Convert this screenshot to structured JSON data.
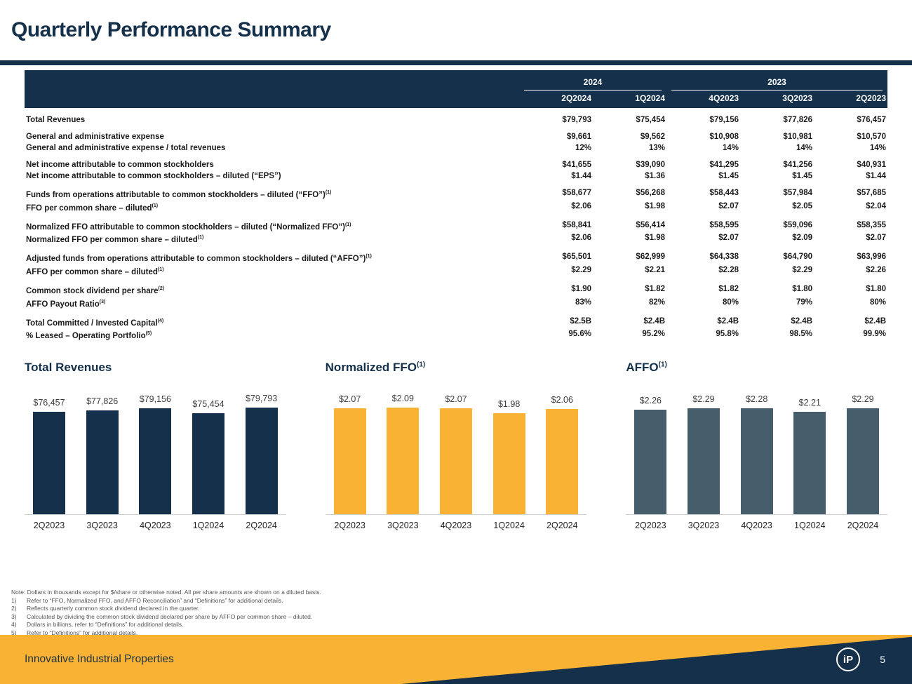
{
  "title": "Quarterly Performance Summary",
  "colors": {
    "navy": "#14304A",
    "gold": "#F9B234",
    "slate": "#465E6B"
  },
  "table": {
    "year_groups": [
      {
        "label": "2024"
      },
      {
        "label": "2023"
      }
    ],
    "columns": [
      "2Q2024",
      "1Q2024",
      "4Q2023",
      "3Q2023",
      "2Q2023"
    ],
    "groups": [
      {
        "rows": [
          {
            "label": "Total Revenues",
            "sup": "",
            "values": [
              "$79,793",
              "$75,454",
              "$79,156",
              "$77,826",
              "$76,457"
            ]
          }
        ]
      },
      {
        "rows": [
          {
            "label": "General and administrative expense",
            "sup": "",
            "values": [
              "$9,661",
              "$9,562",
              "$10,908",
              "$10,981",
              "$10,570"
            ]
          },
          {
            "label": "General and administrative expense / total revenues",
            "sup": "",
            "values": [
              "12%",
              "13%",
              "14%",
              "14%",
              "14%"
            ]
          }
        ]
      },
      {
        "rows": [
          {
            "label": "Net income attributable to common stockholders",
            "sup": "",
            "values": [
              "$41,655",
              "$39,090",
              "$41,295",
              "$41,256",
              "$40,931"
            ]
          },
          {
            "label": "Net income attributable to common stockholders – diluted (“EPS”)",
            "sup": "",
            "values": [
              "$1.44",
              "$1.36",
              "$1.45",
              "$1.45",
              "$1.44"
            ]
          }
        ]
      },
      {
        "rows": [
          {
            "label": "Funds from operations attributable to common stockholders – diluted (“FFO”)",
            "sup": "(1)",
            "values": [
              "$58,677",
              "$56,268",
              "$58,443",
              "$57,984",
              "$57,685"
            ]
          },
          {
            "label": "FFO per common share – diluted",
            "sup": "(1)",
            "values": [
              "$2.06",
              "$1.98",
              "$2.07",
              "$2.05",
              "$2.04"
            ]
          }
        ]
      },
      {
        "rows": [
          {
            "label": "Normalized FFO attributable to common stockholders – diluted (“Normalized FFO”)",
            "sup": "(1)",
            "values": [
              "$58,841",
              "$56,414",
              "$58,595",
              "$59,096",
              "$58,355"
            ]
          },
          {
            "label": "Normalized FFO per common share – diluted",
            "sup": "(1)",
            "values": [
              "$2.06",
              "$1.98",
              "$2.07",
              "$2.09",
              "$2.07"
            ]
          }
        ]
      },
      {
        "rows": [
          {
            "label": "Adjusted funds from operations attributable to common stockholders – diluted (“AFFO”)",
            "sup": "(1)",
            "values": [
              "$65,501",
              "$62,999",
              "$64,338",
              "$64,790",
              "$63,996"
            ]
          },
          {
            "label": "AFFO per common share – diluted",
            "sup": "(1)",
            "values": [
              "$2.29",
              "$2.21",
              "$2.28",
              "$2.29",
              "$2.26"
            ]
          }
        ]
      },
      {
        "rows": [
          {
            "label": "Common stock dividend per share",
            "sup": "(2)",
            "values": [
              "$1.90",
              "$1.82",
              "$1.82",
              "$1.80",
              "$1.80"
            ]
          },
          {
            "label": "AFFO Payout Ratio",
            "sup": "(3)",
            "values": [
              "83%",
              "82%",
              "80%",
              "79%",
              "80%"
            ]
          }
        ]
      },
      {
        "rows": [
          {
            "label": "Total Committed / Invested Capital",
            "sup": "(4)",
            "values": [
              "$2.5B",
              "$2.4B",
              "$2.4B",
              "$2.4B",
              "$2.4B"
            ]
          },
          {
            "label": "% Leased – Operating Portfolio",
            "sup": "(5)",
            "values": [
              "95.6%",
              "95.2%",
              "95.8%",
              "98.5%",
              "99.9%"
            ]
          }
        ]
      }
    ]
  },
  "chart_data": [
    {
      "type": "bar",
      "title": "Total Revenues",
      "title_sup": "",
      "categories": [
        "2Q2023",
        "3Q2023",
        "4Q2023",
        "1Q2024",
        "2Q2024"
      ],
      "values": [
        76457,
        77826,
        79156,
        75454,
        79793
      ],
      "labels": [
        "$76,457",
        "$77,826",
        "$79,156",
        "$75,454",
        "$79,793"
      ],
      "bar_color": "#14304A",
      "ylim": [
        0,
        84000
      ],
      "grid": false,
      "legend": "none"
    },
    {
      "type": "bar",
      "title": "Normalized FFO",
      "title_sup": "(1)",
      "categories": [
        "2Q2023",
        "3Q2023",
        "4Q2023",
        "1Q2024",
        "2Q2024"
      ],
      "values": [
        2.07,
        2.09,
        2.07,
        1.98,
        2.06
      ],
      "labels": [
        "$2.07",
        "$2.09",
        "$2.07",
        "$1.98",
        "$2.06"
      ],
      "bar_color": "#F9B234",
      "ylim": [
        0,
        2.2
      ],
      "grid": false,
      "legend": "none"
    },
    {
      "type": "bar",
      "title": "AFFO",
      "title_sup": "(1)",
      "categories": [
        "2Q2023",
        "3Q2023",
        "4Q2023",
        "1Q2024",
        "2Q2024"
      ],
      "values": [
        2.26,
        2.29,
        2.28,
        2.21,
        2.29
      ],
      "labels": [
        "$2.26",
        "$2.29",
        "$2.28",
        "$2.21",
        "$2.29"
      ],
      "bar_color": "#465E6B",
      "ylim": [
        0,
        2.42
      ],
      "grid": false,
      "legend": "none"
    }
  ],
  "footnotes": {
    "note": "Note: Dollars in thousands except for $/share or otherwise noted. All per share amounts are shown on a diluted basis.",
    "items": [
      {
        "num": "1)",
        "text": "Refer to “FFO, Normalized FFO, and AFFO Reconciliation” and “Definitions” for additional details."
      },
      {
        "num": "2)",
        "text": "Reflects quarterly common stock dividend declared in the quarter."
      },
      {
        "num": "3)",
        "text": "Calculated by dividing the common stock dividend declared per share by AFFO per common share – diluted."
      },
      {
        "num": "4)",
        "text": "Dollars in billions, refer to “Definitions” for additional details."
      },
      {
        "num": "5)",
        "text": "Refer to “Definitions” for additional details."
      }
    ]
  },
  "footer": {
    "brand": "Innovative Industrial Properties",
    "logo_text": "iP",
    "page_number": "5"
  }
}
